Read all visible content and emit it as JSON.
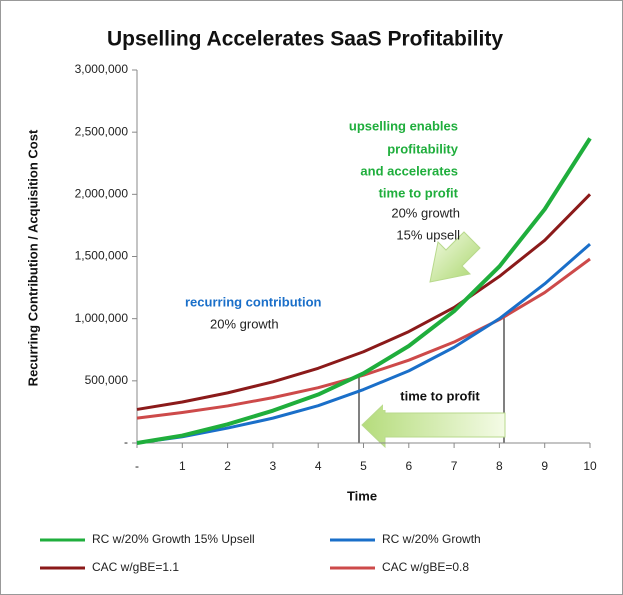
{
  "chart_data": {
    "type": "line",
    "title": "Upselling Accelerates SaaS Profitability",
    "xlabel": "Time",
    "ylabel": "Recurring Contribution / Acquisition Cost",
    "x": [
      0,
      1,
      2,
      3,
      4,
      5,
      6,
      7,
      8,
      9,
      10
    ],
    "xlim": [
      0,
      10
    ],
    "xticks": [
      {
        "value": 0,
        "label": "-"
      },
      1,
      2,
      3,
      4,
      5,
      6,
      7,
      8,
      9,
      10
    ],
    "ylim": [
      0,
      3000000
    ],
    "yticks": [
      {
        "value": 0,
        "label": "-"
      },
      {
        "value": 500000,
        "label": "500,000"
      },
      {
        "value": 1000000,
        "label": "1,000,000"
      },
      {
        "value": 1500000,
        "label": "1,500,000"
      },
      {
        "value": 2000000,
        "label": "2,000,000"
      },
      {
        "value": 2500000,
        "label": "2,500,000"
      },
      {
        "value": 3000000,
        "label": "3,000,000"
      }
    ],
    "series": [
      {
        "name": "RC w/20% Growth  15% Upsell",
        "color": "#1fae3c",
        "values": [
          0,
          60000,
          150000,
          260000,
          390000,
          560000,
          780000,
          1060000,
          1420000,
          1880000,
          2450000
        ]
      },
      {
        "name": "RC w/20% Growth",
        "color": "#1a6fc9",
        "values": [
          0,
          50000,
          120000,
          200000,
          300000,
          430000,
          580000,
          770000,
          1000000,
          1280000,
          1600000
        ]
      },
      {
        "name": "CAC w/gBE=1.1",
        "color": "#8b1a1a",
        "values": [
          270000,
          330000,
          403000,
          492000,
          601000,
          734000,
          896000,
          1090000,
          1340000,
          1630000,
          2000000
        ]
      },
      {
        "name": "CAC w/gBE=0.8",
        "color": "#cd4a4a",
        "values": [
          200000,
          245000,
          298000,
          365000,
          445000,
          545000,
          666000,
          812000,
          993000,
          1210000,
          1480000
        ]
      }
    ],
    "annotations": [
      "upselling enables",
      "profitability",
      "and accelerates",
      "time to profit",
      "20% growth",
      "15% upsell",
      "recurring contribution",
      "20% growth",
      "time to profit"
    ]
  }
}
